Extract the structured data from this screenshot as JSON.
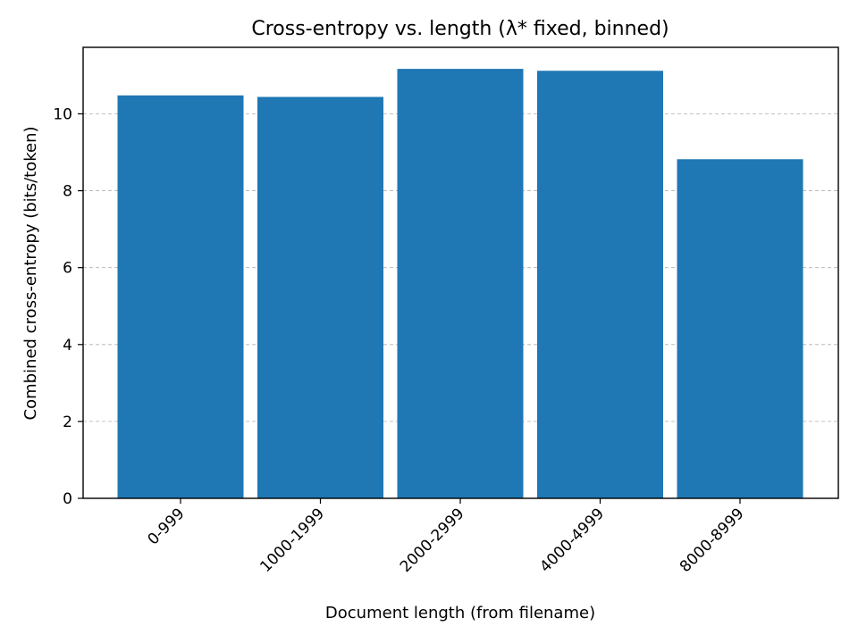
{
  "chart_data": {
    "type": "bar",
    "title": "Cross-entropy vs. length (λ* fixed, binned)",
    "xlabel": "Document length (from filename)",
    "ylabel": "Combined cross-entropy (bits/token)",
    "categories": [
      "0-999",
      "1000-1999",
      "2000-2999",
      "4000-4999",
      "8000-8999"
    ],
    "values": [
      10.48,
      10.44,
      11.17,
      11.12,
      8.82
    ],
    "ylim": [
      0,
      11.73
    ],
    "yticks": [
      0,
      2,
      4,
      6,
      8,
      10
    ],
    "grid": "y-dashed",
    "bar_color": "#1f77b4"
  }
}
